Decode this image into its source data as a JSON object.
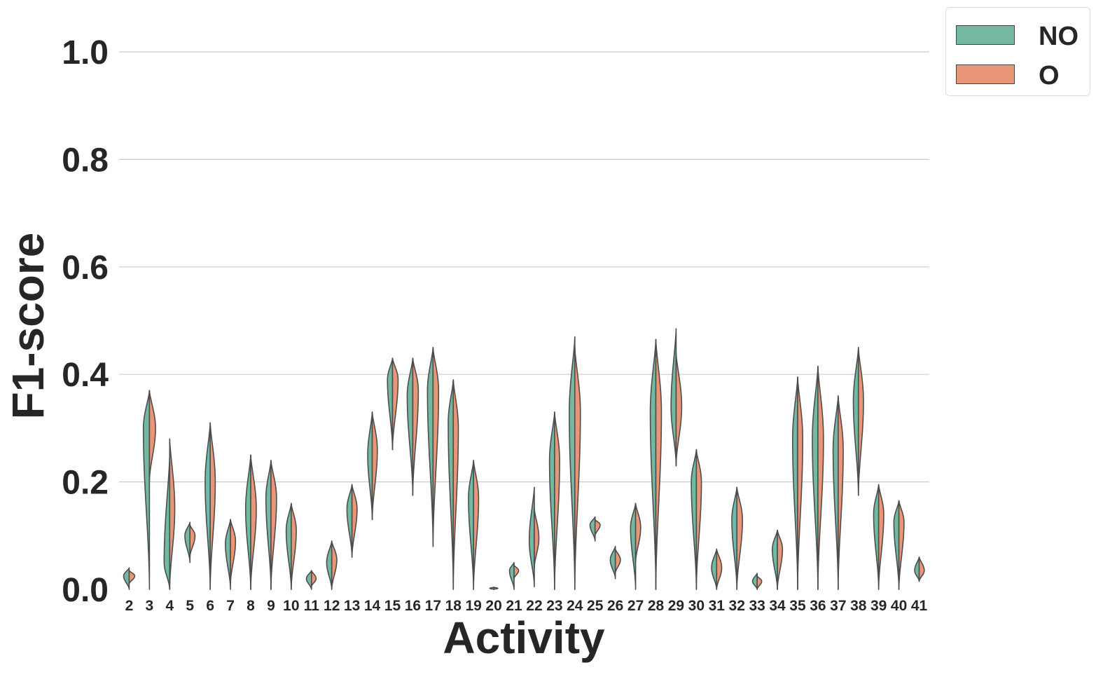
{
  "chart_data": {
    "type": "violin",
    "split": true,
    "xlabel": "Activity",
    "ylabel": "F1-score",
    "ylim": [
      0,
      1.05
    ],
    "yticks": [
      "0.0",
      "0.2",
      "0.4",
      "0.6",
      "0.8",
      "1.0"
    ],
    "grid": "horizontal",
    "legend_position": "top-right, outside plot",
    "series": [
      {
        "name": "NO",
        "color": "#73b8a0"
      },
      {
        "name": "O",
        "color": "#e99677"
      }
    ],
    "categories": [
      "2",
      "3",
      "4",
      "5",
      "6",
      "7",
      "8",
      "9",
      "10",
      "11",
      "12",
      "13",
      "14",
      "15",
      "16",
      "17",
      "18",
      "19",
      "20",
      "21",
      "22",
      "23",
      "24",
      "25",
      "26",
      "27",
      "28",
      "29",
      "30",
      "31",
      "32",
      "33",
      "34",
      "35",
      "36",
      "37",
      "38",
      "39",
      "40",
      "41"
    ],
    "violins": [
      {
        "x": "2",
        "NO": {
          "min": 0.0,
          "max": 0.04,
          "mode": 0.025,
          "width": 0.55
        },
        "O": {
          "min": 0.01,
          "max": 0.035,
          "mode": 0.025,
          "width": 0.55
        }
      },
      {
        "x": "3",
        "NO": {
          "min": 0.0,
          "max": 0.37,
          "mode": 0.3,
          "width": 0.6
        },
        "O": {
          "min": 0.2,
          "max": 0.37,
          "mode": 0.3,
          "width": 0.6
        }
      },
      {
        "x": "4",
        "NO": {
          "min": 0.0,
          "max": 0.25,
          "mode": 0.05,
          "width": 0.55
        },
        "O": {
          "min": 0.0,
          "max": 0.28,
          "mode": 0.15,
          "width": 0.5
        }
      },
      {
        "x": "5",
        "NO": {
          "min": 0.05,
          "max": 0.125,
          "mode": 0.1,
          "width": 0.5
        },
        "O": {
          "min": 0.06,
          "max": 0.12,
          "mode": 0.1,
          "width": 0.5
        }
      },
      {
        "x": "6",
        "NO": {
          "min": 0.0,
          "max": 0.31,
          "mode": 0.2,
          "width": 0.5
        },
        "O": {
          "min": 0.0,
          "max": 0.31,
          "mode": 0.2,
          "width": 0.5
        }
      },
      {
        "x": "7",
        "NO": {
          "min": 0.0,
          "max": 0.13,
          "mode": 0.085,
          "width": 0.5
        },
        "O": {
          "min": 0.01,
          "max": 0.13,
          "mode": 0.09,
          "width": 0.5
        }
      },
      {
        "x": "8",
        "NO": {
          "min": 0.0,
          "max": 0.25,
          "mode": 0.15,
          "width": 0.5
        },
        "O": {
          "min": 0.0,
          "max": 0.25,
          "mode": 0.15,
          "width": 0.55
        }
      },
      {
        "x": "9",
        "NO": {
          "min": 0.0,
          "max": 0.24,
          "mode": 0.17,
          "width": 0.5
        },
        "O": {
          "min": 0.0,
          "max": 0.24,
          "mode": 0.17,
          "width": 0.55
        }
      },
      {
        "x": "10",
        "NO": {
          "min": 0.0,
          "max": 0.16,
          "mode": 0.11,
          "width": 0.5
        },
        "O": {
          "min": 0.0,
          "max": 0.16,
          "mode": 0.11,
          "width": 0.5
        }
      },
      {
        "x": "11",
        "NO": {
          "min": 0.0,
          "max": 0.035,
          "mode": 0.02,
          "width": 0.5
        },
        "O": {
          "min": 0.005,
          "max": 0.035,
          "mode": 0.02,
          "width": 0.45
        }
      },
      {
        "x": "12",
        "NO": {
          "min": 0.0,
          "max": 0.09,
          "mode": 0.05,
          "width": 0.5
        },
        "O": {
          "min": 0.0,
          "max": 0.09,
          "mode": 0.055,
          "width": 0.5
        }
      },
      {
        "x": "13",
        "NO": {
          "min": 0.06,
          "max": 0.195,
          "mode": 0.15,
          "width": 0.5
        },
        "O": {
          "min": 0.06,
          "max": 0.195,
          "mode": 0.15,
          "width": 0.5
        }
      },
      {
        "x": "14",
        "NO": {
          "min": 0.13,
          "max": 0.33,
          "mode": 0.25,
          "width": 0.45
        },
        "O": {
          "min": 0.13,
          "max": 0.33,
          "mode": 0.26,
          "width": 0.5
        }
      },
      {
        "x": "15",
        "NO": {
          "min": 0.26,
          "max": 0.43,
          "mode": 0.39,
          "width": 0.5
        },
        "O": {
          "min": 0.26,
          "max": 0.43,
          "mode": 0.39,
          "width": 0.55
        }
      },
      {
        "x": "16",
        "NO": {
          "min": 0.175,
          "max": 0.43,
          "mode": 0.36,
          "width": 0.55
        },
        "O": {
          "min": 0.175,
          "max": 0.43,
          "mode": 0.37,
          "width": 0.55
        }
      },
      {
        "x": "17",
        "NO": {
          "min": 0.08,
          "max": 0.45,
          "mode": 0.37,
          "width": 0.55
        },
        "O": {
          "min": 0.08,
          "max": 0.45,
          "mode": 0.37,
          "width": 0.55
        }
      },
      {
        "x": "18",
        "NO": {
          "min": 0.0,
          "max": 0.39,
          "mode": 0.31,
          "width": 0.5
        },
        "O": {
          "min": 0.0,
          "max": 0.39,
          "mode": 0.3,
          "width": 0.5
        }
      },
      {
        "x": "19",
        "NO": {
          "min": 0.0,
          "max": 0.24,
          "mode": 0.17,
          "width": 0.5
        },
        "O": {
          "min": 0.0,
          "max": 0.24,
          "mode": 0.17,
          "width": 0.5
        }
      },
      {
        "x": "20",
        "NO": {
          "min": 0.0,
          "max": 0.004,
          "mode": 0.002,
          "width": 0.4
        },
        "O": {
          "min": 0.0,
          "max": 0.004,
          "mode": 0.002,
          "width": 0.4
        }
      },
      {
        "x": "21",
        "NO": {
          "min": 0.0,
          "max": 0.05,
          "mode": 0.035,
          "width": 0.45
        },
        "O": {
          "min": 0.02,
          "max": 0.045,
          "mode": 0.035,
          "width": 0.45
        }
      },
      {
        "x": "22",
        "NO": {
          "min": 0.005,
          "max": 0.19,
          "mode": 0.09,
          "width": 0.5
        },
        "O": {
          "min": 0.04,
          "max": 0.15,
          "mode": 0.095,
          "width": 0.45
        }
      },
      {
        "x": "23",
        "NO": {
          "min": 0.0,
          "max": 0.33,
          "mode": 0.24,
          "width": 0.5
        },
        "O": {
          "min": 0.0,
          "max": 0.33,
          "mode": 0.24,
          "width": 0.5
        }
      },
      {
        "x": "24",
        "NO": {
          "min": 0.0,
          "max": 0.47,
          "mode": 0.33,
          "width": 0.55
        },
        "O": {
          "min": 0.0,
          "max": 0.45,
          "mode": 0.33,
          "width": 0.55
        }
      },
      {
        "x": "25",
        "NO": {
          "min": 0.09,
          "max": 0.135,
          "mode": 0.12,
          "width": 0.5
        },
        "O": {
          "min": 0.1,
          "max": 0.13,
          "mode": 0.12,
          "width": 0.5
        }
      },
      {
        "x": "26",
        "NO": {
          "min": 0.02,
          "max": 0.08,
          "mode": 0.055,
          "width": 0.5
        },
        "O": {
          "min": 0.03,
          "max": 0.075,
          "mode": 0.055,
          "width": 0.5
        }
      },
      {
        "x": "27",
        "NO": {
          "min": 0.0,
          "max": 0.16,
          "mode": 0.115,
          "width": 0.5
        },
        "O": {
          "min": 0.05,
          "max": 0.16,
          "mode": 0.115,
          "width": 0.5
        }
      },
      {
        "x": "28",
        "NO": {
          "min": 0.0,
          "max": 0.465,
          "mode": 0.33,
          "width": 0.55
        },
        "O": {
          "min": 0.0,
          "max": 0.465,
          "mode": 0.33,
          "width": 0.55
        }
      },
      {
        "x": "29",
        "NO": {
          "min": 0.23,
          "max": 0.485,
          "mode": 0.34,
          "width": 0.5
        },
        "O": {
          "min": 0.23,
          "max": 0.44,
          "mode": 0.34,
          "width": 0.55
        }
      },
      {
        "x": "30",
        "NO": {
          "min": 0.0,
          "max": 0.26,
          "mode": 0.2,
          "width": 0.5
        },
        "O": {
          "min": 0.0,
          "max": 0.26,
          "mode": 0.2,
          "width": 0.5
        }
      },
      {
        "x": "31",
        "NO": {
          "min": 0.0,
          "max": 0.075,
          "mode": 0.04,
          "width": 0.5
        },
        "O": {
          "min": 0.0,
          "max": 0.075,
          "mode": 0.04,
          "width": 0.5
        }
      },
      {
        "x": "32",
        "NO": {
          "min": 0.0,
          "max": 0.19,
          "mode": 0.13,
          "width": 0.5
        },
        "O": {
          "min": 0.0,
          "max": 0.19,
          "mode": 0.13,
          "width": 0.55
        }
      },
      {
        "x": "33",
        "NO": {
          "min": 0.0,
          "max": 0.03,
          "mode": 0.015,
          "width": 0.45
        },
        "O": {
          "min": 0.0,
          "max": 0.025,
          "mode": 0.015,
          "width": 0.45
        }
      },
      {
        "x": "34",
        "NO": {
          "min": 0.0,
          "max": 0.11,
          "mode": 0.075,
          "width": 0.5
        },
        "O": {
          "min": 0.0,
          "max": 0.11,
          "mode": 0.075,
          "width": 0.5
        }
      },
      {
        "x": "35",
        "NO": {
          "min": 0.0,
          "max": 0.395,
          "mode": 0.28,
          "width": 0.5
        },
        "O": {
          "min": 0.0,
          "max": 0.395,
          "mode": 0.28,
          "width": 0.5
        }
      },
      {
        "x": "36",
        "NO": {
          "min": 0.0,
          "max": 0.415,
          "mode": 0.28,
          "width": 0.55
        },
        "O": {
          "min": 0.0,
          "max": 0.415,
          "mode": 0.28,
          "width": 0.55
        }
      },
      {
        "x": "37",
        "NO": {
          "min": 0.0,
          "max": 0.36,
          "mode": 0.26,
          "width": 0.5
        },
        "O": {
          "min": 0.0,
          "max": 0.36,
          "mode": 0.26,
          "width": 0.5
        }
      },
      {
        "x": "38",
        "NO": {
          "min": 0.175,
          "max": 0.45,
          "mode": 0.35,
          "width": 0.5
        },
        "O": {
          "min": 0.175,
          "max": 0.45,
          "mode": 0.35,
          "width": 0.5
        }
      },
      {
        "x": "39",
        "NO": {
          "min": 0.0,
          "max": 0.195,
          "mode": 0.14,
          "width": 0.5
        },
        "O": {
          "min": 0.0,
          "max": 0.195,
          "mode": 0.14,
          "width": 0.5
        }
      },
      {
        "x": "40",
        "NO": {
          "min": 0.0,
          "max": 0.165,
          "mode": 0.125,
          "width": 0.5
        },
        "O": {
          "min": 0.0,
          "max": 0.165,
          "mode": 0.125,
          "width": 0.5
        }
      },
      {
        "x": "41",
        "NO": {
          "min": 0.015,
          "max": 0.06,
          "mode": 0.035,
          "width": 0.45
        },
        "O": {
          "min": 0.015,
          "max": 0.06,
          "mode": 0.035,
          "width": 0.5
        }
      }
    ]
  }
}
